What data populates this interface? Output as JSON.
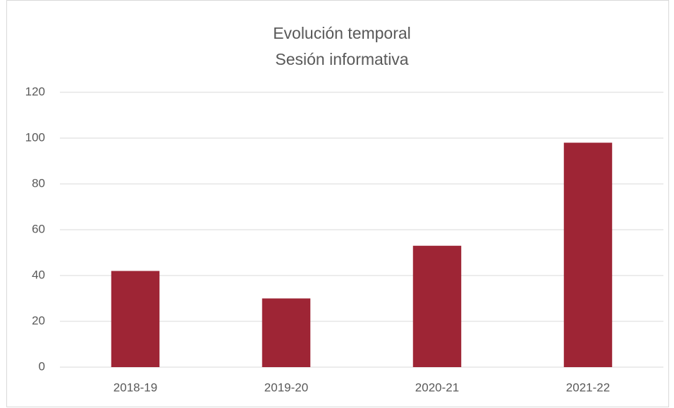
{
  "chart_data": {
    "type": "bar",
    "title": "Evolución temporal",
    "subtitle": "Sesión informativa",
    "categories": [
      "2018-19",
      "2019-20",
      "2020-21",
      "2021-22"
    ],
    "values": [
      42,
      30,
      53,
      98
    ],
    "color": "#9e2535",
    "ylim": [
      0,
      120
    ],
    "yticks": [
      0,
      20,
      40,
      60,
      80,
      100,
      120
    ],
    "grid": true
  }
}
